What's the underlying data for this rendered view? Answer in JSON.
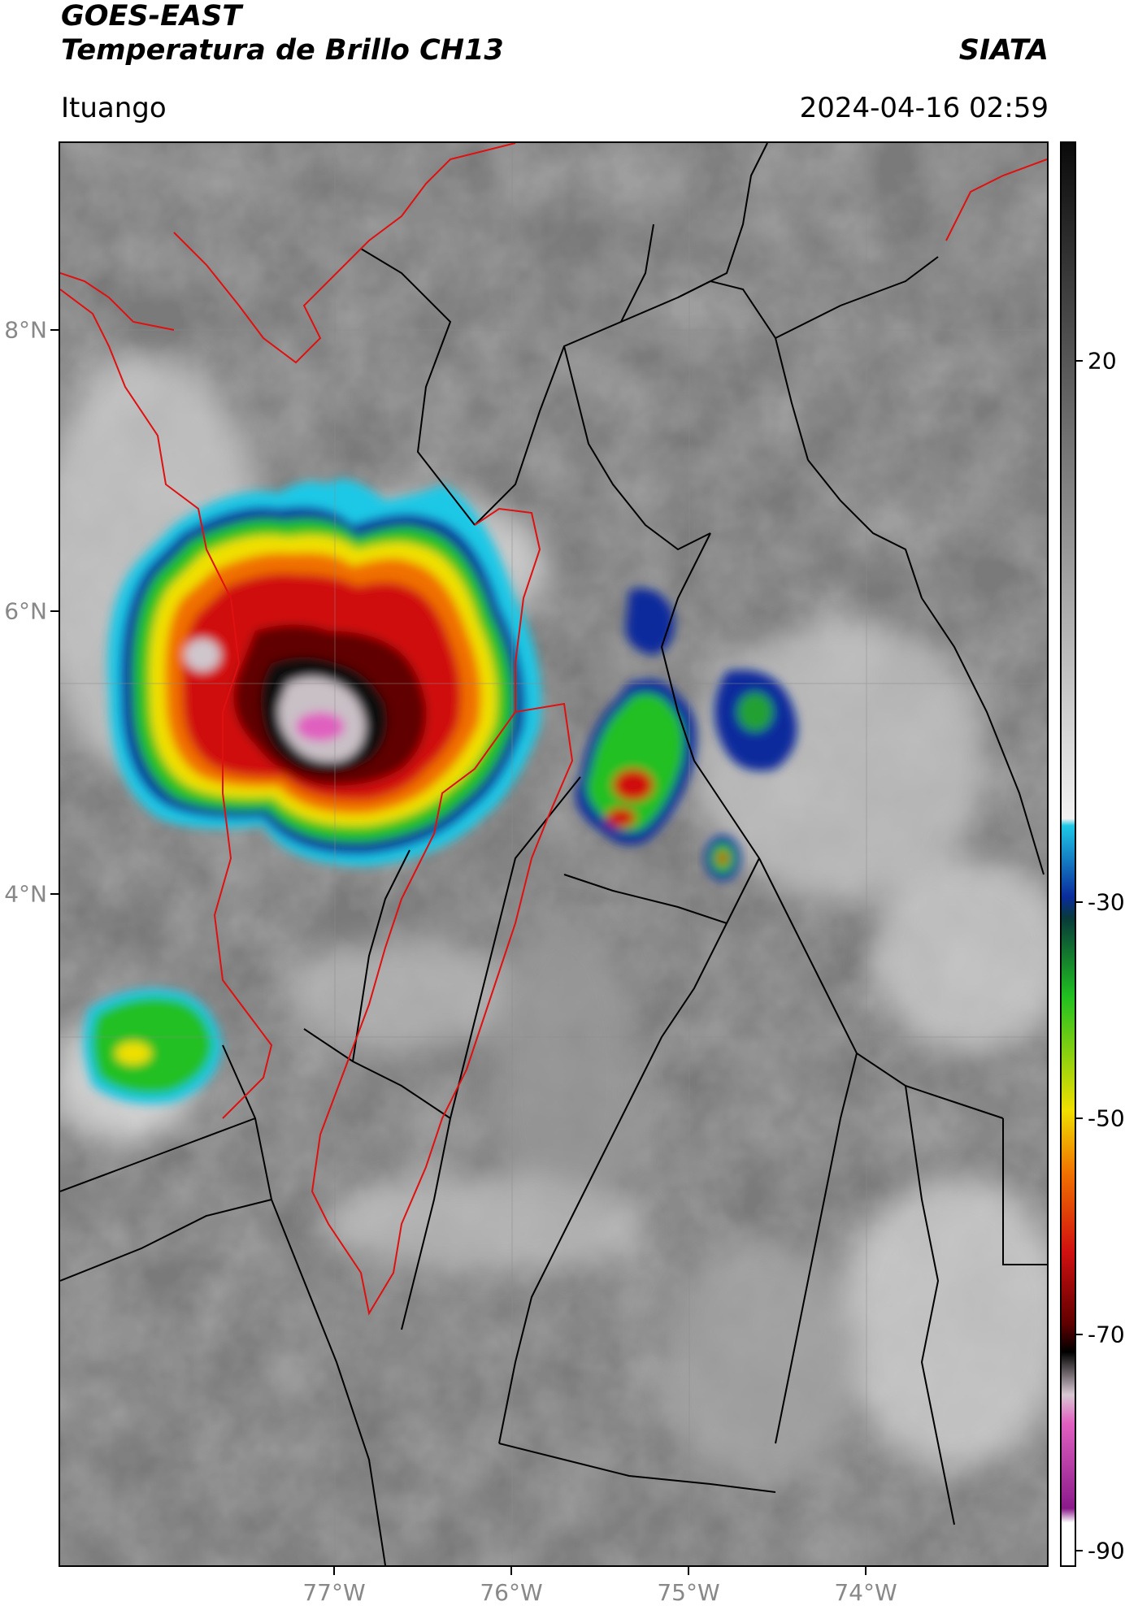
{
  "header": {
    "title_line1": "GOES-EAST",
    "title_line2": "Temperatura de Brillo CH13",
    "brand": "SIATA",
    "location": "Ituango",
    "timestamp": "2024-04-16 02:59"
  },
  "axes": {
    "lat_labels": [
      "8°N",
      "6°N",
      "4°N"
    ],
    "lon_labels": [
      "77°W",
      "76°W",
      "75°W",
      "74°W"
    ]
  },
  "colorbar": {
    "tick_labels": [
      "20",
      "-30",
      "-50",
      "-70",
      "-90"
    ],
    "vmin": -90,
    "vmax": 40,
    "colors": {
      "warm_gray": "#6e6e6e",
      "light_gray": "#d8d8d8",
      "cyan": "#1ec8e6",
      "blue": "#0a2c9c",
      "green": "#20c020",
      "yellow": "#f0e000",
      "orange": "#f07000",
      "red": "#d01010",
      "dark_red": "#600000",
      "black": "#000000",
      "pink": "#e060c0",
      "purple": "#8a1a8a",
      "white": "#ffffff"
    }
  },
  "map": {
    "political_border_color": "#000000",
    "region_border_color": "#e01010"
  }
}
